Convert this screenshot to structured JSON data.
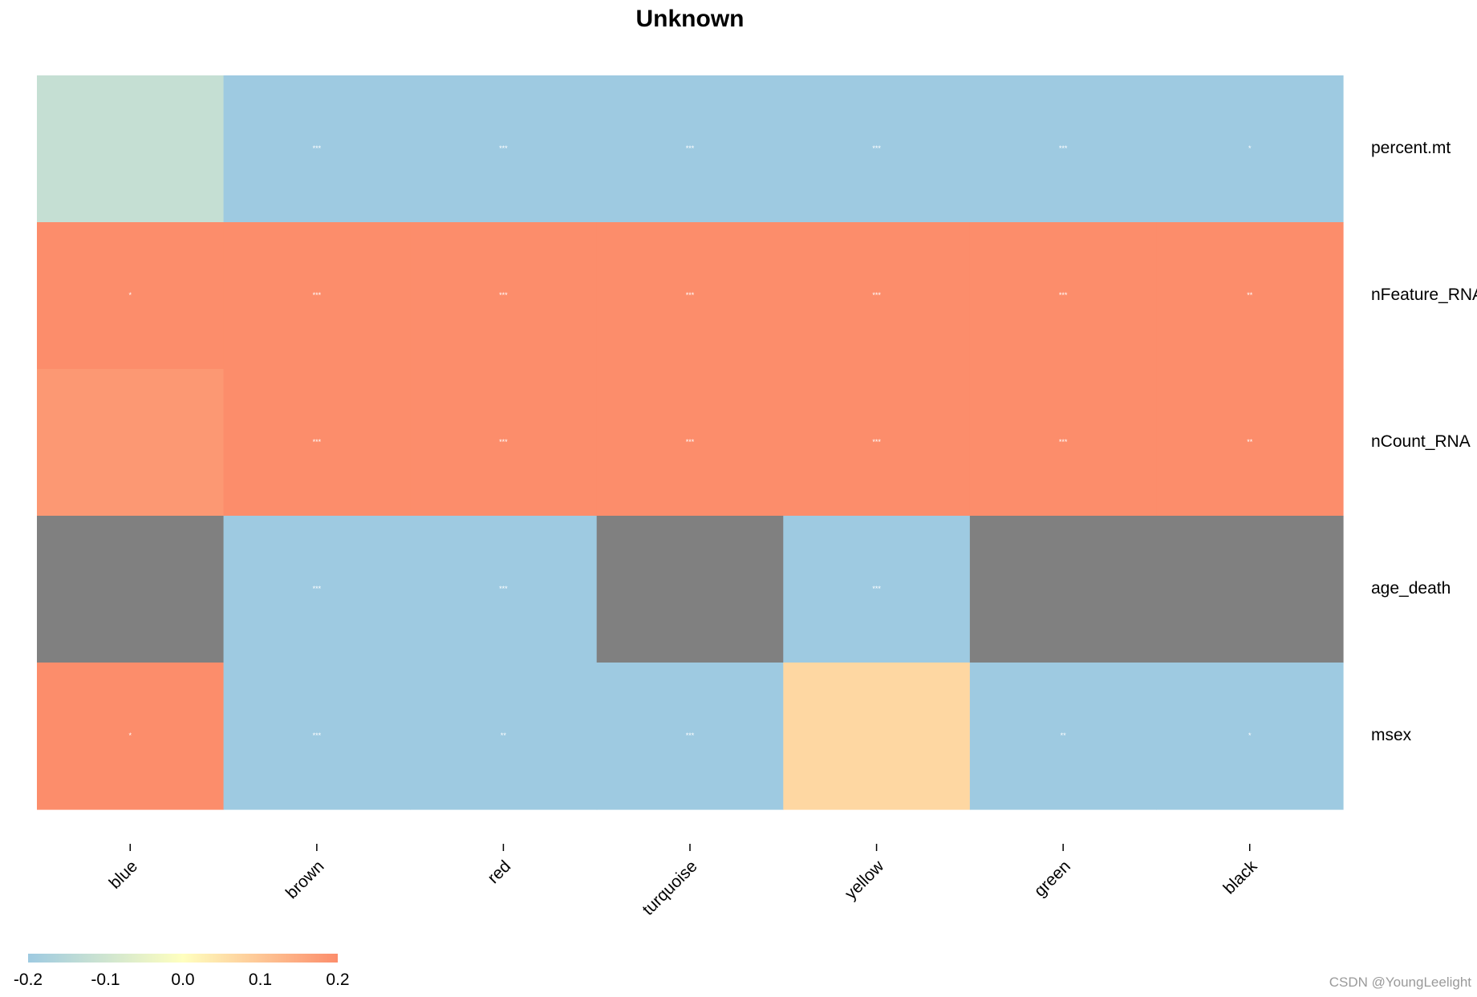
{
  "chart_data": {
    "type": "heatmap",
    "title": "Unknown",
    "rows": [
      "percent.mt",
      "nFeature_RNA",
      "nCount_RNA",
      "age_death",
      "msex"
    ],
    "columns": [
      "blue",
      "brown",
      "red",
      "turquoise",
      "yellow",
      "green",
      "black"
    ],
    "values": [
      [
        -0.12,
        -0.2,
        -0.2,
        -0.2,
        -0.2,
        -0.2,
        -0.2
      ],
      [
        0.2,
        0.2,
        0.2,
        0.2,
        0.2,
        0.2,
        0.2
      ],
      [
        0.18,
        0.2,
        0.2,
        0.2,
        0.2,
        0.2,
        0.2
      ],
      [
        null,
        -0.2,
        -0.2,
        null,
        -0.2,
        null,
        null
      ],
      [
        0.2,
        -0.2,
        -0.2,
        -0.2,
        0.07,
        -0.2,
        -0.2
      ]
    ],
    "cell_labels": [
      [
        "",
        "***",
        "***",
        "***",
        "***",
        "***",
        "*"
      ],
      [
        "*",
        "***",
        "***",
        "***",
        "***",
        "***",
        "**"
      ],
      [
        "",
        "***",
        "***",
        "***",
        "***",
        "***",
        "**"
      ],
      [
        "",
        "***",
        "***",
        "",
        "***",
        "",
        ""
      ],
      [
        "*",
        "***",
        "**",
        "***",
        "",
        "**",
        "*"
      ]
    ],
    "na_color": "#808080",
    "colorscale": {
      "min": -0.2,
      "max": 0.2,
      "stops": [
        "#9ecae1",
        "#ffffbf",
        "#fc8d6b"
      ],
      "ticks": [
        "-0.2",
        "-0.1",
        "0.0",
        "0.1",
        "0.2"
      ]
    },
    "legend_position": "bottom-left"
  },
  "watermark": "CSDN @YoungLeelight"
}
